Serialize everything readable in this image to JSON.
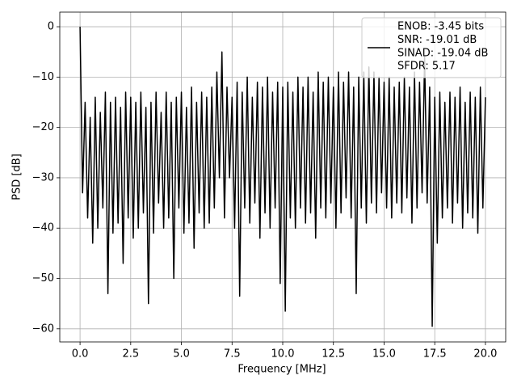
{
  "chart_data": {
    "type": "line",
    "xlabel": "Frequency [MHz]",
    "ylabel": "PSD [dB]",
    "xlim": [
      -1.0,
      21.0
    ],
    "ylim": [
      -62.6,
      2.9
    ],
    "xticks": [
      {
        "value": 0,
        "label": "0.0"
      },
      {
        "value": 2.5,
        "label": "2.5"
      },
      {
        "value": 5,
        "label": "5.0"
      },
      {
        "value": 7.5,
        "label": "7.5"
      },
      {
        "value": 10,
        "label": "10.0"
      },
      {
        "value": 12.5,
        "label": "12.5"
      },
      {
        "value": 15,
        "label": "15.0"
      },
      {
        "value": 17.5,
        "label": "17.5"
      },
      {
        "value": 20,
        "label": "20.0"
      }
    ],
    "yticks": [
      0,
      {
        "value": -10,
        "label": "−10"
      },
      {
        "value": -20,
        "label": "−20"
      },
      {
        "value": -30,
        "label": "−30"
      },
      {
        "value": -40,
        "label": "−40"
      },
      {
        "value": -50,
        "label": "−50"
      },
      {
        "value": -60,
        "label": "−60"
      }
    ],
    "grid": true,
    "legend_position": "upper right",
    "legend_text": [
      "ENOB: -3.45 bits",
      "SNR: -19.01 dB",
      "SINAD: -19.04 dB",
      "SFDR: 5.17"
    ],
    "x": [
      0,
      0.125,
      0.25,
      0.375,
      0.5,
      0.625,
      0.75,
      0.875,
      1,
      1.125,
      1.25,
      1.375,
      1.5,
      1.625,
      1.75,
      1.875,
      2,
      2.125,
      2.25,
      2.375,
      2.5,
      2.625,
      2.75,
      2.875,
      3,
      3.125,
      3.25,
      3.375,
      3.5,
      3.625,
      3.75,
      3.875,
      4,
      4.125,
      4.25,
      4.375,
      4.5,
      4.625,
      4.75,
      4.875,
      5,
      5.125,
      5.25,
      5.375,
      5.5,
      5.625,
      5.75,
      5.875,
      6,
      6.125,
      6.25,
      6.375,
      6.5,
      6.625,
      6.75,
      6.875,
      7,
      7.125,
      7.25,
      7.375,
      7.5,
      7.625,
      7.75,
      7.875,
      8,
      8.125,
      8.25,
      8.375,
      8.5,
      8.625,
      8.75,
      8.875,
      9,
      9.125,
      9.25,
      9.375,
      9.5,
      9.625,
      9.75,
      9.875,
      10,
      10.125,
      10.25,
      10.375,
      10.5,
      10.625,
      10.75,
      10.875,
      11,
      11.125,
      11.25,
      11.375,
      11.5,
      11.625,
      11.75,
      11.875,
      12,
      12.125,
      12.25,
      12.375,
      12.5,
      12.625,
      12.75,
      12.875,
      13,
      13.125,
      13.25,
      13.375,
      13.5,
      13.625,
      13.75,
      13.875,
      14,
      14.125,
      14.25,
      14.375,
      14.5,
      14.625,
      14.75,
      14.875,
      15,
      15.125,
      15.25,
      15.375,
      15.5,
      15.625,
      15.75,
      15.875,
      16,
      16.125,
      16.25,
      16.375,
      16.5,
      16.625,
      16.75,
      16.875,
      17,
      17.125,
      17.25,
      17.375,
      17.5,
      17.625,
      17.75,
      17.875,
      18,
      18.125,
      18.25,
      18.375,
      18.5,
      18.625,
      18.75,
      18.875,
      19,
      19.125,
      19.25,
      19.375,
      19.5,
      19.625,
      19.75,
      19.875,
      20
    ],
    "series": [
      {
        "color": "#000000",
        "values": [
          0,
          -33,
          -15,
          -38,
          -18,
          -43,
          -14,
          -40,
          -17,
          -36,
          -13,
          -53,
          -15,
          -41,
          -14,
          -39,
          -16,
          -47,
          -13,
          -38,
          -14,
          -42,
          -15,
          -40,
          -13,
          -37,
          -16,
          -55,
          -15,
          -41,
          -13,
          -35,
          -17,
          -40,
          -13,
          -38,
          -15,
          -50,
          -14,
          -36,
          -13,
          -41,
          -16,
          -39,
          -12,
          -44,
          -15,
          -37,
          -13,
          -40,
          -14,
          -39,
          -12,
          -36,
          -9,
          -30,
          -5,
          -38,
          -12,
          -30,
          -14,
          -40,
          -11,
          -53.5,
          -13,
          -36,
          -10,
          -39,
          -14,
          -35,
          -11,
          -42,
          -12,
          -37,
          -10,
          -40,
          -13,
          -36,
          -11,
          -51,
          -12,
          -56.5,
          -11,
          -38,
          -13,
          -40,
          -10,
          -36,
          -12,
          -39,
          -10,
          -37,
          -13,
          -42,
          -9,
          -36,
          -11,
          -38,
          -10,
          -35,
          -12,
          -40,
          -9,
          -37,
          -11,
          -34,
          -9,
          -38,
          -12,
          -53,
          -10,
          -36,
          -9,
          -39,
          -8,
          -35,
          -9,
          -37,
          -10,
          -33,
          -11,
          -36,
          -10,
          -38,
          -12,
          -35,
          -11,
          -37,
          -10,
          -34,
          -12,
          -39,
          -9,
          -36,
          -11,
          -33,
          -6,
          -35,
          -12,
          -59.5,
          -14,
          -43,
          -13,
          -38,
          -15,
          -36,
          -13,
          -39,
          -14,
          -35,
          -12,
          -40,
          -15,
          -37,
          -13,
          -38,
          -14,
          -41,
          -12,
          -36,
          -14
        ]
      }
    ]
  }
}
